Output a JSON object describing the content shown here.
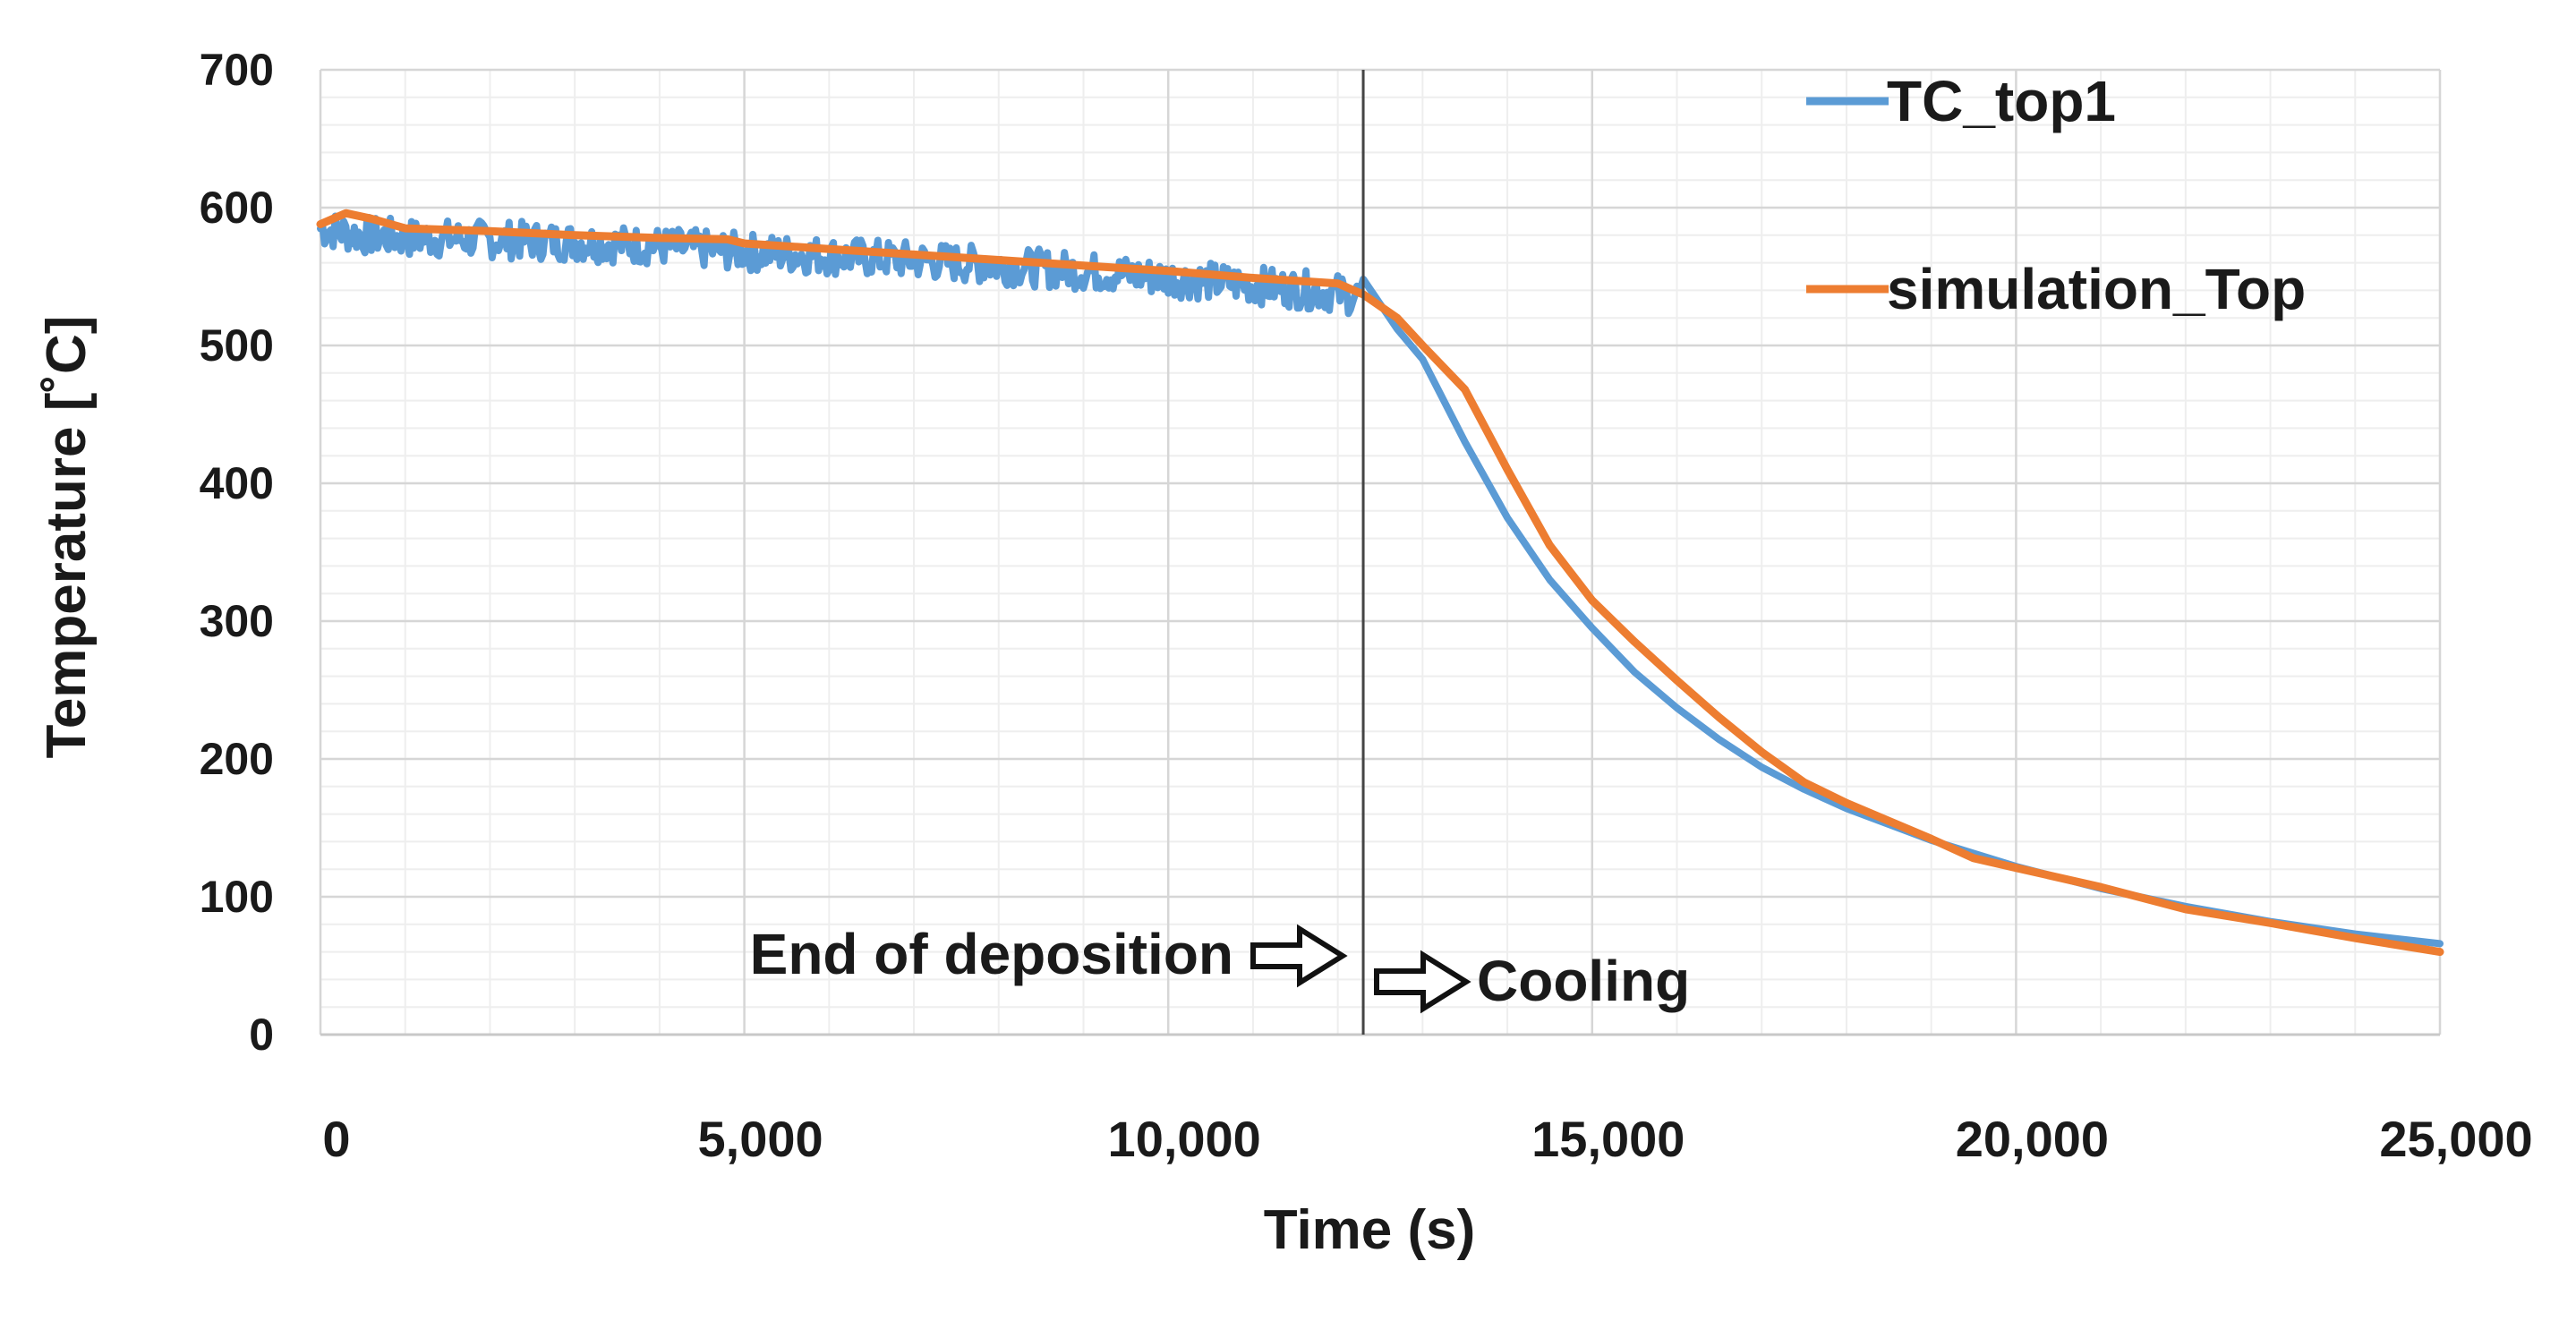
{
  "chart_data": {
    "type": "line",
    "title": "",
    "xlabel": "Time (s)",
    "ylabel": "Temperature [˚C]",
    "xlim": [
      0,
      25000
    ],
    "ylim": [
      0,
      700
    ],
    "x_major_ticks": [
      0,
      5000,
      10000,
      15000,
      20000,
      25000
    ],
    "x_tick_labels": [
      "0",
      "5,000",
      "10,000",
      "15,000",
      "20,000",
      "25,000"
    ],
    "y_major_ticks": [
      0,
      100,
      200,
      300,
      400,
      500,
      600,
      700
    ],
    "y_tick_labels": [
      "0",
      "100",
      "200",
      "300",
      "400",
      "500",
      "600",
      "700"
    ],
    "x_minor_step": 1000,
    "y_minor_step": 20,
    "grid": true,
    "legend_position": "top-right",
    "series": [
      {
        "name": "TC_top1",
        "color": "#5b9bd5",
        "noisy_until": 12300,
        "noise_amplitude": 14,
        "x": [
          0,
          500,
          1000,
          2000,
          3000,
          4000,
          5000,
          6000,
          7000,
          8000,
          9000,
          10000,
          11000,
          12000,
          12300,
          12700,
          13000,
          13500,
          14000,
          14500,
          15000,
          15500,
          16000,
          16500,
          17000,
          17500,
          18000,
          19000,
          20000,
          21000,
          22000,
          23000,
          24000,
          25000
        ],
        "y": [
          585,
          580,
          578,
          577,
          575,
          572,
          568,
          565,
          562,
          558,
          554,
          549,
          544,
          538,
          535,
          512,
          490,
          430,
          375,
          330,
          295,
          263,
          237,
          214,
          194,
          178,
          164,
          141,
          122,
          106,
          93,
          82,
          73,
          66
        ]
      },
      {
        "name": "simulation_Top",
        "color": "#ed7d31",
        "x": [
          0,
          300,
          600,
          1000,
          2000,
          3000,
          4000,
          4800,
          5000,
          6000,
          7000,
          8000,
          9000,
          10000,
          11000,
          12000,
          12300,
          12700,
          13000,
          13500,
          14000,
          14500,
          15000,
          15500,
          16000,
          16500,
          17000,
          17500,
          18000,
          18500,
          19000,
          19500,
          20000,
          21000,
          22000,
          23000,
          24000,
          25000
        ],
        "y": [
          588,
          596,
          592,
          585,
          583,
          580,
          578,
          577,
          574,
          570,
          566,
          562,
          558,
          554,
          549,
          545,
          537,
          520,
          500,
          468,
          410,
          355,
          315,
          285,
          257,
          230,
          205,
          183,
          168,
          155,
          142,
          128,
          121,
          107,
          91,
          81,
          70,
          60
        ]
      }
    ],
    "vertical_marker": {
      "x": 12300,
      "color": "#444444"
    },
    "annotations": [
      {
        "text": "End of deposition",
        "arrow": "right",
        "anchor": "left-of-marker",
        "y": 60
      },
      {
        "text": "Cooling",
        "arrow": "right",
        "anchor": "right-of-marker",
        "y": 40
      }
    ]
  }
}
